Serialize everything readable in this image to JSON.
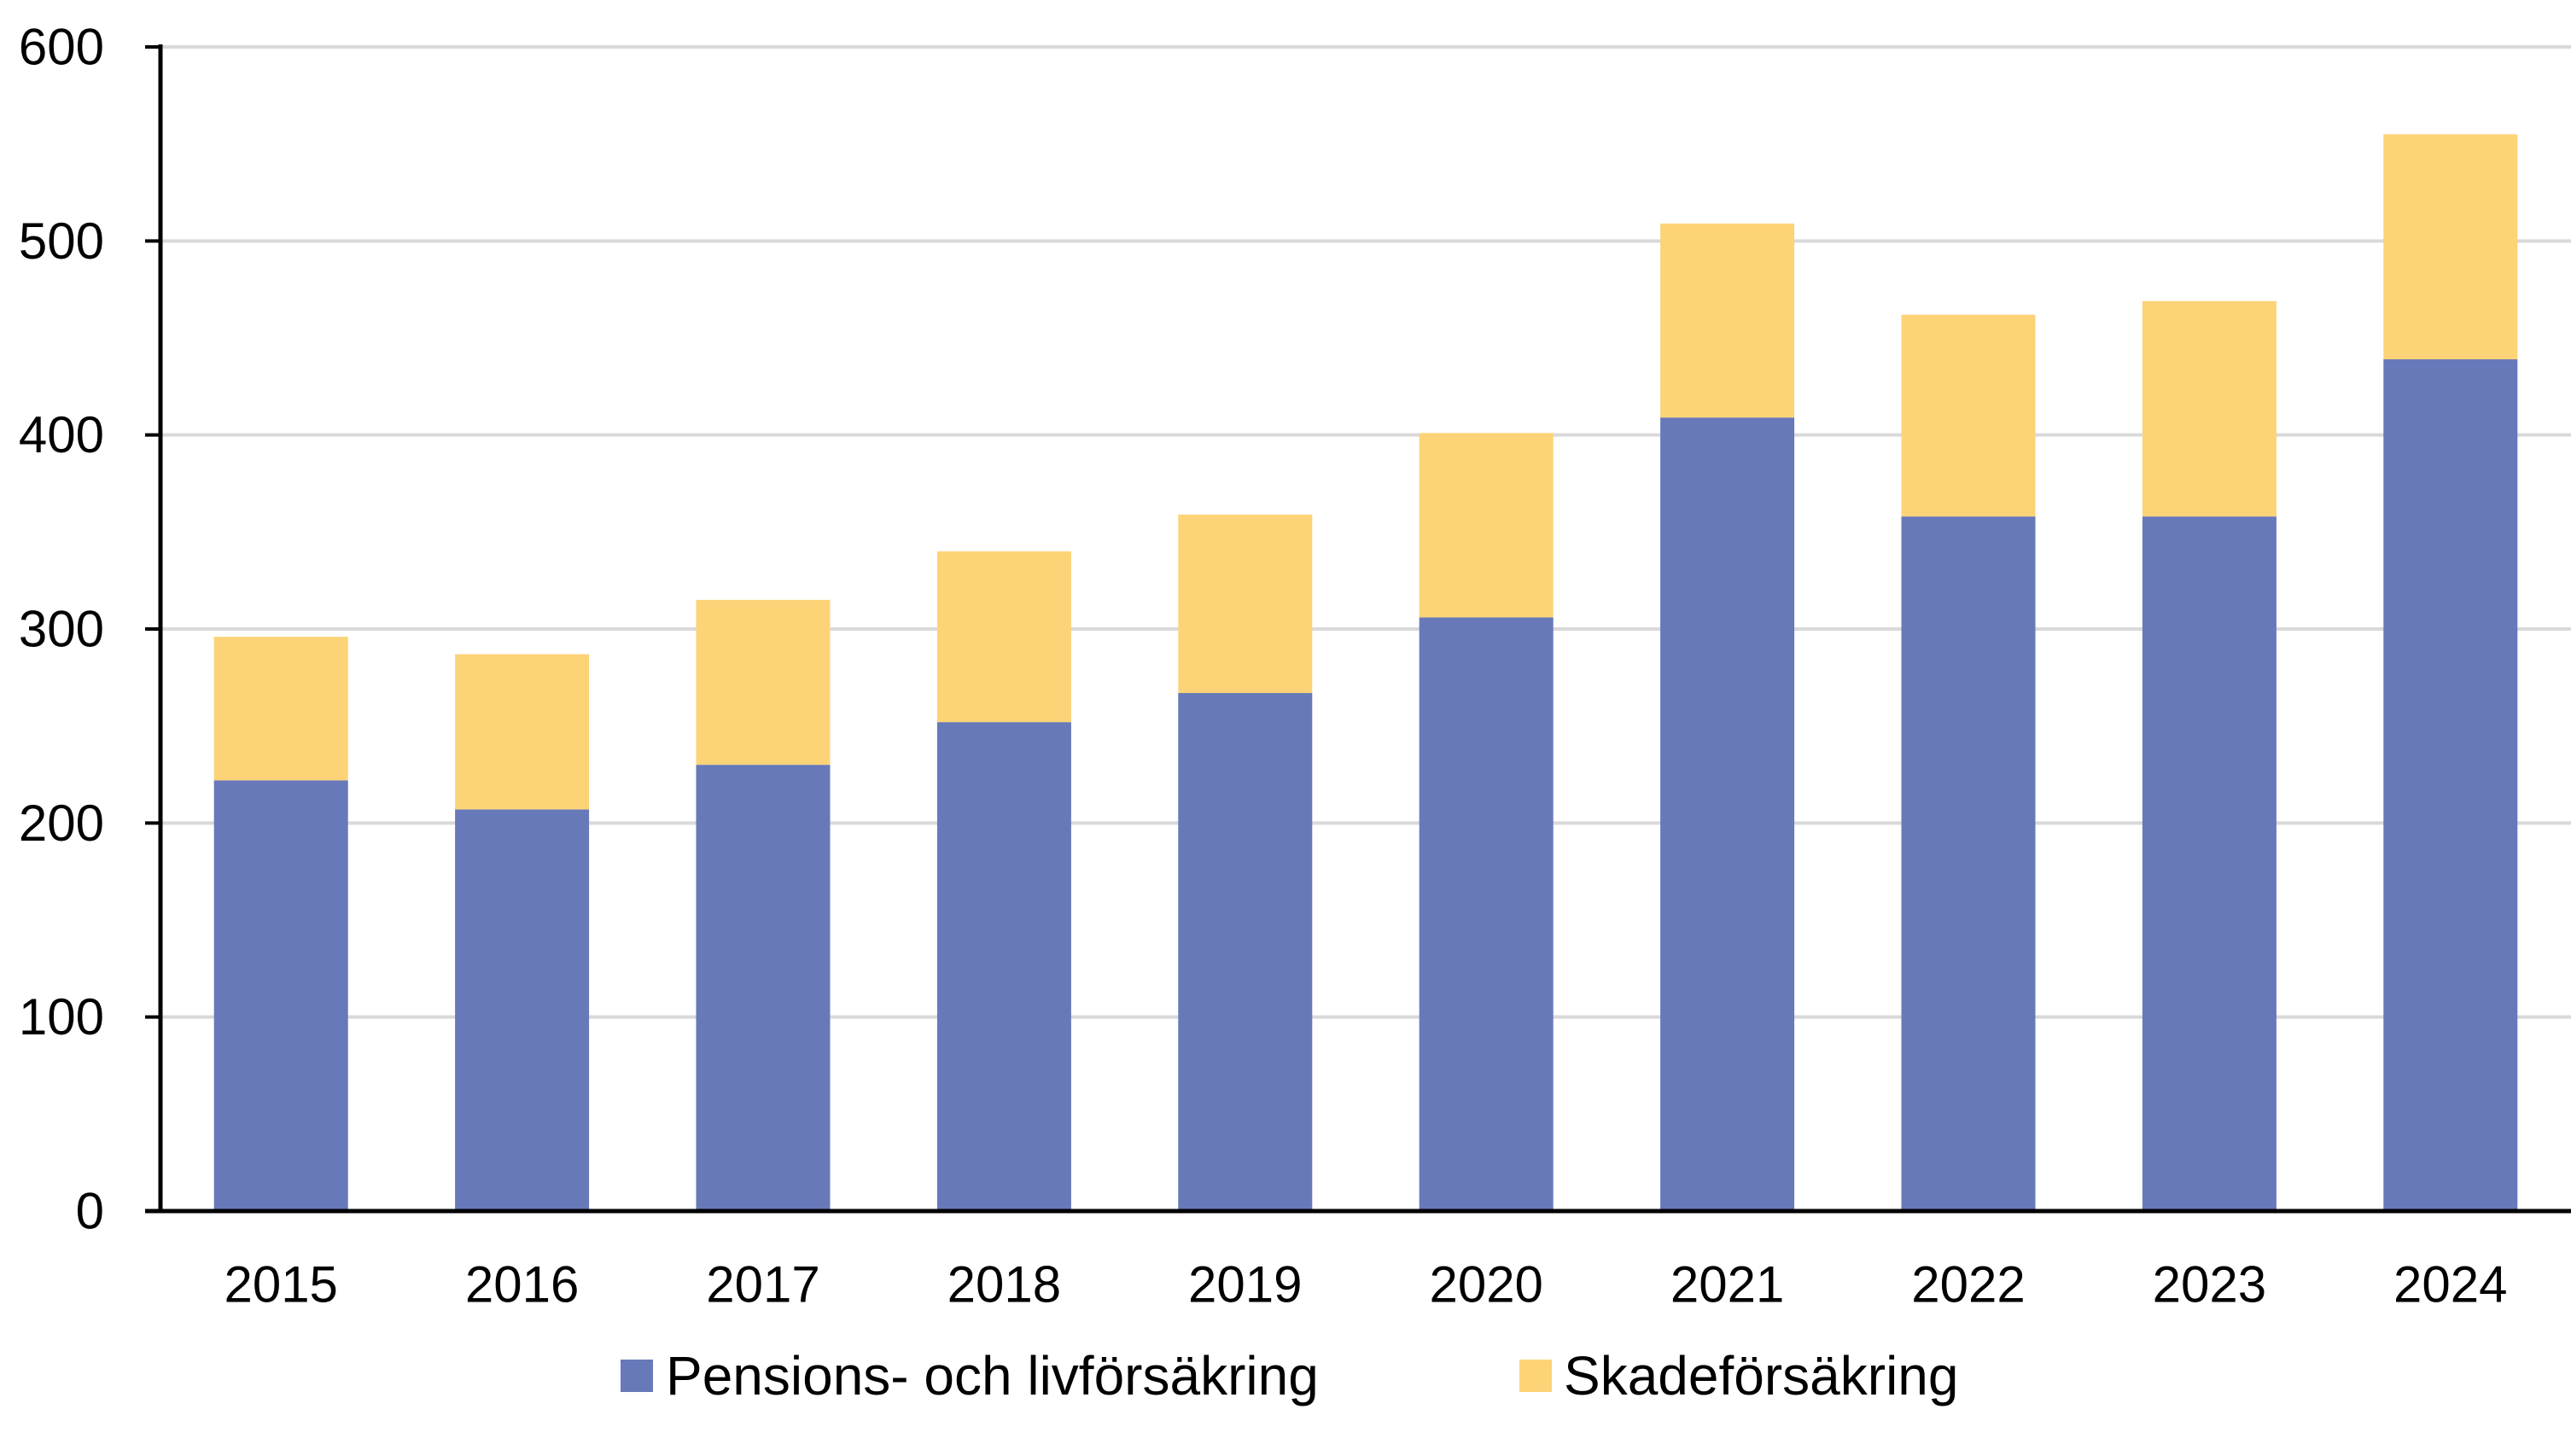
{
  "chart_data": {
    "type": "bar",
    "stacked": true,
    "title": "",
    "xlabel": "",
    "ylabel": "",
    "categories": [
      "2015",
      "2016",
      "2017",
      "2018",
      "2019",
      "2020",
      "2021",
      "2022",
      "2023",
      "2024"
    ],
    "series": [
      {
        "name": "Pensions- och livförsäkring",
        "color": "#6779b9",
        "values": [
          222,
          207,
          230,
          252,
          267,
          306,
          409,
          358,
          358,
          439
        ]
      },
      {
        "name": "Skadeförsäkring",
        "color": "#fdd378",
        "values": [
          74,
          80,
          85,
          88,
          92,
          95,
          100,
          104,
          111,
          116
        ]
      }
    ],
    "ylim": [
      0,
      600
    ],
    "yticks": [
      "0",
      "100",
      "200",
      "300",
      "400",
      "500",
      "600"
    ],
    "grid": true,
    "legend_position": "bottom"
  }
}
